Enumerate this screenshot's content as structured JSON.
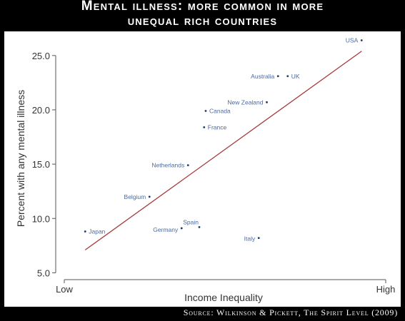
{
  "header": {
    "title_line1": "Mental illness: more common in more",
    "title_line2": "unequal rich countries"
  },
  "footer": {
    "source": "Source: Wilkinson & Pickett, The Spirit Level (2009)"
  },
  "colors": {
    "background": "#000000",
    "panel": "#ffffff",
    "points": "#1f3b6e",
    "labels": "#4a6aa0",
    "fit_line": "#a83a3a",
    "axis_text": "#333333"
  },
  "chart_data": {
    "type": "scatter",
    "title": "Mental illness: more common in more unequal rich countries",
    "xlabel": "Income Inequality",
    "ylabel": "Percent with any mental illness",
    "x_tick_labels": [
      "Low",
      "High"
    ],
    "xlim": [
      0,
      100
    ],
    "ylim": [
      4.5,
      26.5
    ],
    "y_ticks": [
      5.0,
      10.0,
      15.0,
      20.0,
      25.0
    ],
    "y_tick_labels": [
      "5.0",
      "10.0",
      "15.0",
      "20.0",
      "25.0"
    ],
    "grid": false,
    "points": [
      {
        "label": "Japan",
        "x": 6.5,
        "y": 8.8
      },
      {
        "label": "Germany",
        "x": 36.5,
        "y": 9.1
      },
      {
        "label": "Spain",
        "x": 42.0,
        "y": 9.2
      },
      {
        "label": "Italy",
        "x": 60.5,
        "y": 8.2
      },
      {
        "label": "Belgium",
        "x": 26.5,
        "y": 12.0
      },
      {
        "label": "Netherlands",
        "x": 38.5,
        "y": 14.9
      },
      {
        "label": "France",
        "x": 43.5,
        "y": 18.4
      },
      {
        "label": "Canada",
        "x": 44.0,
        "y": 19.9
      },
      {
        "label": "New Zealand",
        "x": 63.0,
        "y": 20.7
      },
      {
        "label": "Australia",
        "x": 66.5,
        "y": 23.1
      },
      {
        "label": "UK",
        "x": 69.5,
        "y": 23.1
      },
      {
        "label": "USA",
        "x": 92.5,
        "y": 26.4
      }
    ],
    "fit_line": {
      "x": [
        6.5,
        92.5
      ],
      "y": [
        7.1,
        25.4
      ]
    }
  }
}
